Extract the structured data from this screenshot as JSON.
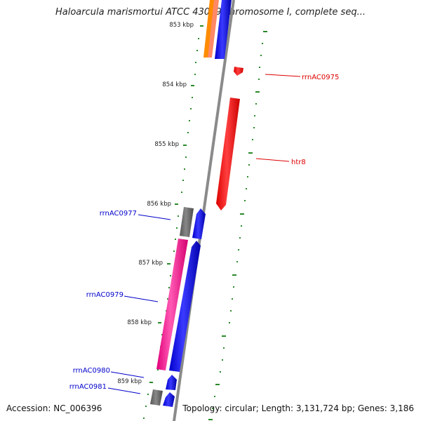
{
  "map": {
    "title": "Haloarcula marismortui ATCC 43049 chromosome I, complete seq...",
    "accession": "Accession: NC_006396",
    "stats": "Topology: circular; Length: 3,131,724 bp; Genes: 3,186"
  },
  "ticks": [
    "853 kbp",
    "854 kbp",
    "855 kbp",
    "856 kbp",
    "857 kbp",
    "858 kbp",
    "859 kbp"
  ],
  "genes": [
    {
      "label": "rrnAC0975",
      "strand": "reverse",
      "color": "#ff0000"
    },
    {
      "label": "htr8",
      "strand": "reverse",
      "color": "#ff0000"
    },
    {
      "label": "rrnAC0977",
      "strand": "forward",
      "color": "#0000ee"
    },
    {
      "label": "rrnAC0979",
      "strand": "forward",
      "color": "#0000ee"
    },
    {
      "label": "rrnAC0980",
      "strand": "forward",
      "color": "#0000ee"
    },
    {
      "label": "rrnAC0981",
      "strand": "forward",
      "color": "#0000ee"
    }
  ],
  "colors": {
    "backbone": "#8a8a8a",
    "tick": "#2a8a2a",
    "cds_forward": "#0000ee",
    "cds_reverse": "#ff0000",
    "rrna": "#ff2d9a",
    "trna": "#666666",
    "other_orange": "#ff8c00",
    "other_salmon": "#ff8866"
  }
}
